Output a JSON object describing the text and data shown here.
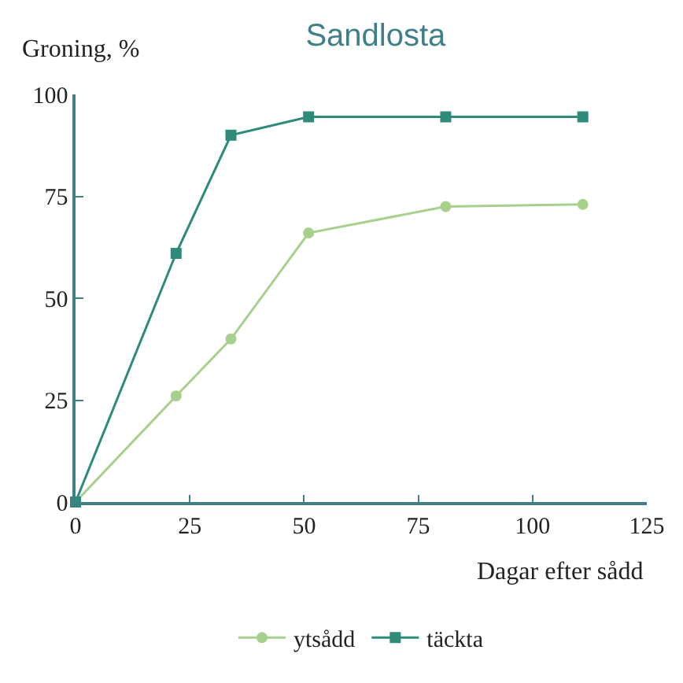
{
  "chart_data": {
    "type": "line",
    "title": "Sandlosta",
    "xlabel": "Dagar efter sådd",
    "ylabel": "Groning, %",
    "xlim": [
      0,
      125
    ],
    "xticks": [
      0,
      25,
      50,
      75,
      100,
      125
    ],
    "ylim": [
      0,
      100
    ],
    "yticks": [
      0,
      25,
      50,
      75,
      100
    ],
    "legend": "bottom",
    "series": [
      {
        "name": "ytsådd",
        "color": "#a8d08d",
        "marker": "circle",
        "x": [
          0,
          22,
          34,
          51,
          81,
          111
        ],
        "values": [
          0,
          26,
          40,
          66,
          72.5,
          73
        ]
      },
      {
        "name": "täckta",
        "color": "#2e8b7a",
        "marker": "square",
        "x": [
          0,
          22,
          34,
          51,
          81,
          111
        ],
        "values": [
          0,
          61,
          90,
          94.5,
          94.5,
          94.5
        ]
      }
    ]
  }
}
